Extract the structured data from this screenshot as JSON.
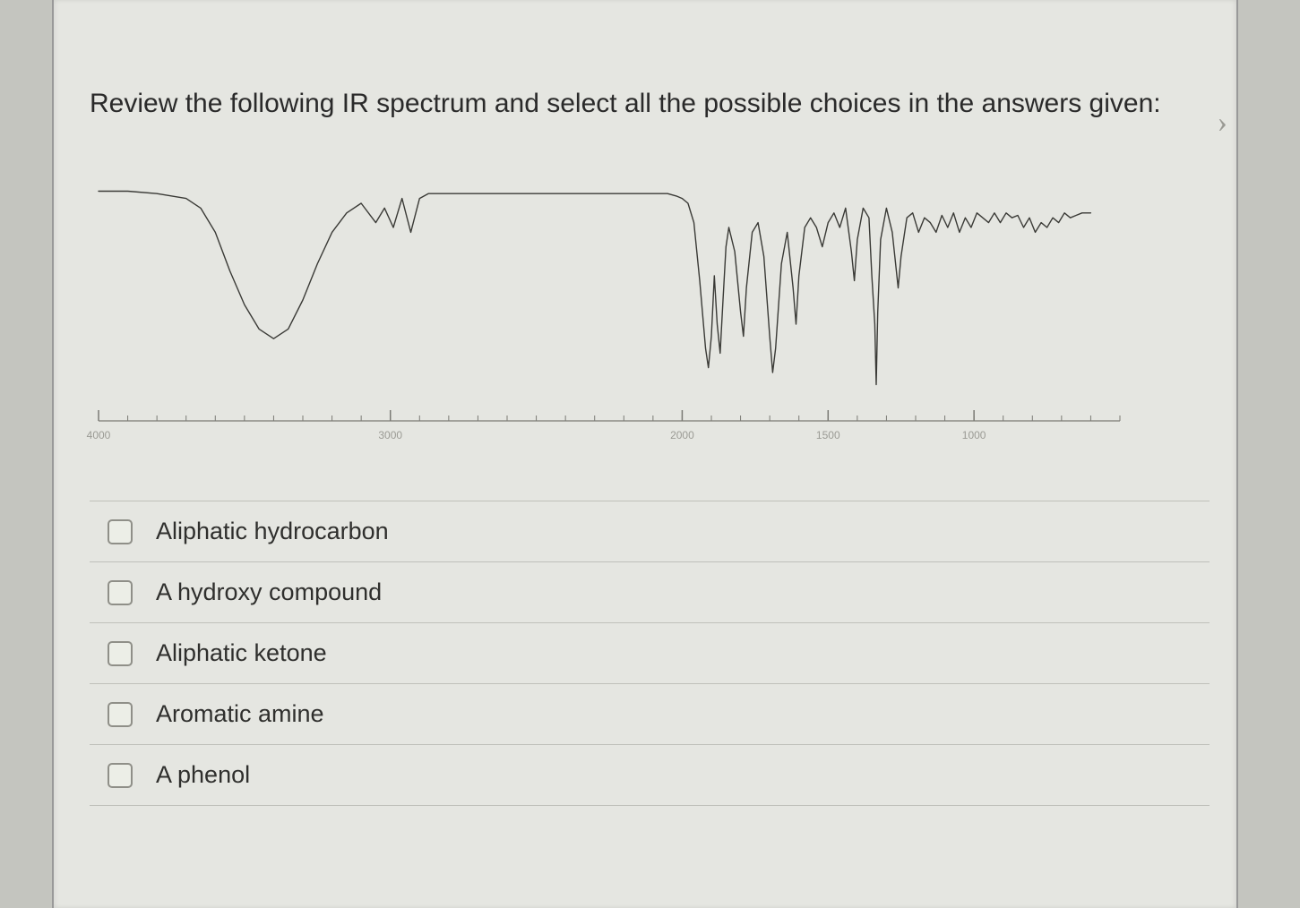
{
  "question": {
    "prompt": "Review the following IR spectrum and select all the possible choices in the answers given:"
  },
  "spectrum_chart": {
    "type": "line",
    "x_axis": {
      "min": 4000,
      "max": 500,
      "ticks": [
        4000,
        3000,
        2000,
        1500,
        1000
      ],
      "label_color": "#9b9b95",
      "label_fontsize": 12,
      "major_tick_color": "#7a7a74",
      "minor_tick_step": 100
    },
    "y_axis": {
      "min": 0,
      "max": 100
    },
    "line_color": "#3a3a36",
    "line_width": 1.4,
    "background_color": "transparent",
    "points": [
      [
        4000,
        95
      ],
      [
        3900,
        95
      ],
      [
        3800,
        94
      ],
      [
        3700,
        92
      ],
      [
        3650,
        88
      ],
      [
        3600,
        78
      ],
      [
        3550,
        62
      ],
      [
        3500,
        48
      ],
      [
        3450,
        38
      ],
      [
        3400,
        34
      ],
      [
        3350,
        38
      ],
      [
        3300,
        50
      ],
      [
        3250,
        65
      ],
      [
        3200,
        78
      ],
      [
        3150,
        86
      ],
      [
        3100,
        90
      ],
      [
        3050,
        82
      ],
      [
        3020,
        88
      ],
      [
        2990,
        80
      ],
      [
        2960,
        92
      ],
      [
        2930,
        78
      ],
      [
        2900,
        92
      ],
      [
        2870,
        94
      ],
      [
        2800,
        94
      ],
      [
        2700,
        94
      ],
      [
        2600,
        94
      ],
      [
        2500,
        94
      ],
      [
        2400,
        94
      ],
      [
        2300,
        94
      ],
      [
        2200,
        94
      ],
      [
        2100,
        94
      ],
      [
        2050,
        94
      ],
      [
        2020,
        93
      ],
      [
        2000,
        92
      ],
      [
        1980,
        90
      ],
      [
        1960,
        82
      ],
      [
        1940,
        58
      ],
      [
        1920,
        30
      ],
      [
        1910,
        22
      ],
      [
        1900,
        35
      ],
      [
        1890,
        60
      ],
      [
        1880,
        40
      ],
      [
        1870,
        28
      ],
      [
        1860,
        50
      ],
      [
        1850,
        72
      ],
      [
        1840,
        80
      ],
      [
        1820,
        70
      ],
      [
        1800,
        45
      ],
      [
        1790,
        35
      ],
      [
        1780,
        55
      ],
      [
        1760,
        78
      ],
      [
        1740,
        82
      ],
      [
        1720,
        68
      ],
      [
        1700,
        35
      ],
      [
        1690,
        20
      ],
      [
        1680,
        30
      ],
      [
        1660,
        65
      ],
      [
        1640,
        78
      ],
      [
        1620,
        55
      ],
      [
        1610,
        40
      ],
      [
        1600,
        60
      ],
      [
        1580,
        80
      ],
      [
        1560,
        84
      ],
      [
        1540,
        80
      ],
      [
        1520,
        72
      ],
      [
        1500,
        82
      ],
      [
        1480,
        86
      ],
      [
        1460,
        80
      ],
      [
        1440,
        88
      ],
      [
        1420,
        70
      ],
      [
        1410,
        58
      ],
      [
        1400,
        75
      ],
      [
        1380,
        88
      ],
      [
        1360,
        84
      ],
      [
        1350,
        60
      ],
      [
        1340,
        40
      ],
      [
        1335,
        15
      ],
      [
        1330,
        45
      ],
      [
        1320,
        75
      ],
      [
        1300,
        88
      ],
      [
        1280,
        78
      ],
      [
        1260,
        55
      ],
      [
        1250,
        68
      ],
      [
        1230,
        84
      ],
      [
        1210,
        86
      ],
      [
        1190,
        78
      ],
      [
        1170,
        84
      ],
      [
        1150,
        82
      ],
      [
        1130,
        78
      ],
      [
        1110,
        85
      ],
      [
        1090,
        80
      ],
      [
        1070,
        86
      ],
      [
        1050,
        78
      ],
      [
        1030,
        84
      ],
      [
        1010,
        80
      ],
      [
        990,
        86
      ],
      [
        970,
        84
      ],
      [
        950,
        82
      ],
      [
        930,
        86
      ],
      [
        910,
        82
      ],
      [
        890,
        86
      ],
      [
        870,
        84
      ],
      [
        850,
        85
      ],
      [
        830,
        80
      ],
      [
        810,
        84
      ],
      [
        790,
        78
      ],
      [
        770,
        82
      ],
      [
        750,
        80
      ],
      [
        730,
        84
      ],
      [
        710,
        82
      ],
      [
        690,
        86
      ],
      [
        670,
        84
      ],
      [
        650,
        85
      ],
      [
        630,
        86
      ],
      [
        600,
        86
      ]
    ]
  },
  "choices": [
    {
      "label": "Aliphatic hydrocarbon",
      "checked": false
    },
    {
      "label": "A hydroxy compound",
      "checked": false
    },
    {
      "label": "Aliphatic ketone",
      "checked": false
    },
    {
      "label": "Aromatic amine",
      "checked": false
    },
    {
      "label": "A phenol",
      "checked": false
    }
  ],
  "colors": {
    "page_bg": "#c4c5bf",
    "panel_bg": "#e5e6e1",
    "text": "#2a2a2a",
    "divider": "#bfc0ba",
    "checkbox_border": "#8f8f88"
  }
}
